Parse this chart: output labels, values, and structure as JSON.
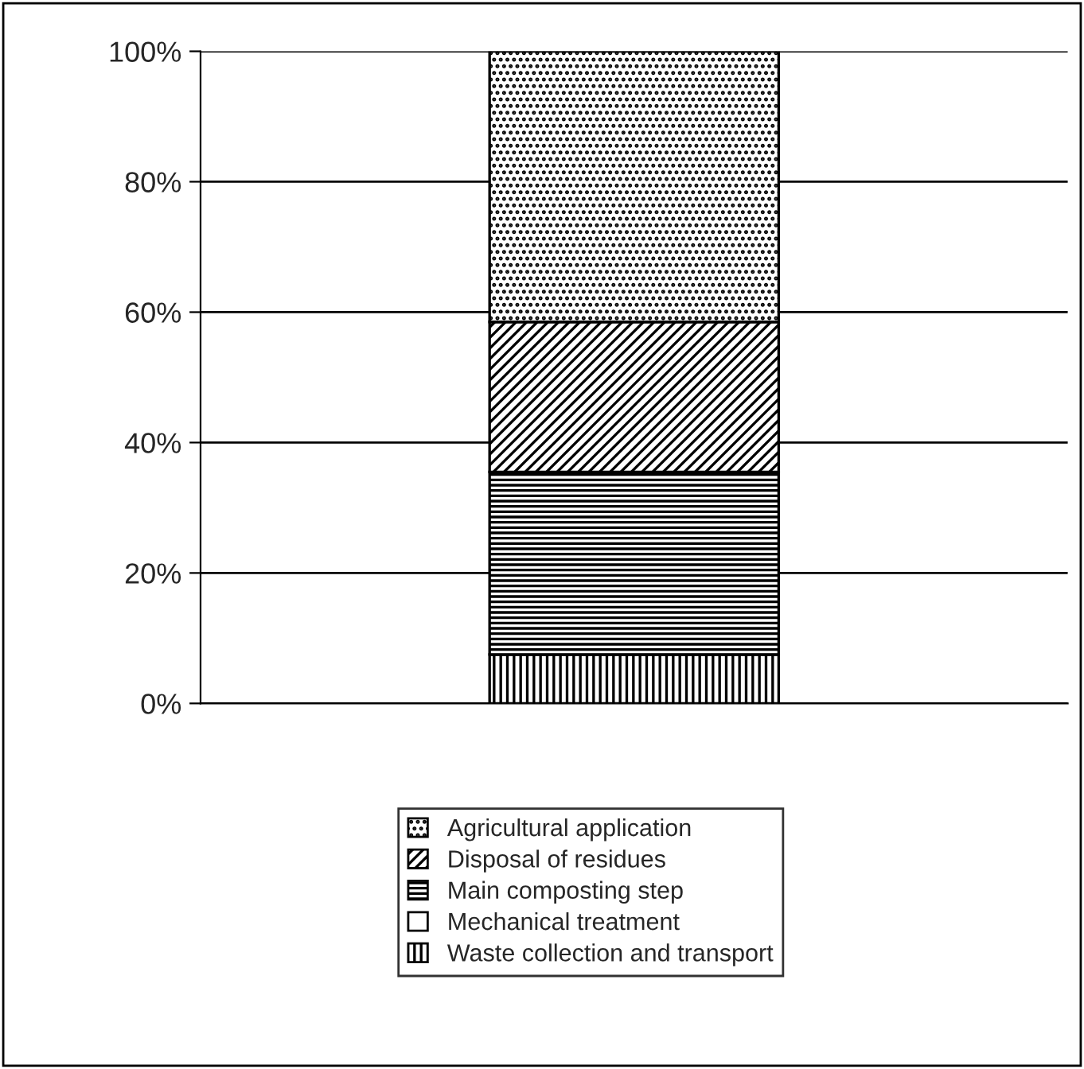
{
  "chart_data": {
    "type": "bar",
    "stacked": true,
    "categories": [
      null
    ],
    "series": [
      {
        "name": "Waste collection and transport",
        "color": "#000000",
        "values": [
          7.5
        ]
      },
      {
        "name": "Mechanical treatment",
        "color": "#ffffff",
        "values": [
          0
        ]
      },
      {
        "name": "Main composting step",
        "color": "#000000",
        "values": [
          28
        ]
      },
      {
        "name": "Disposal of residues",
        "color": "#000000",
        "values": [
          23
        ]
      },
      {
        "name": "Agricultural application",
        "color": "#000000",
        "values": [
          41.5
        ]
      }
    ],
    "ylim": [
      0,
      100
    ],
    "yticks": [
      {
        "value": 0,
        "label": "0%"
      },
      {
        "value": 20,
        "label": "20%"
      },
      {
        "value": 40,
        "label": "40%"
      },
      {
        "value": 60,
        "label": "60%"
      },
      {
        "value": 80,
        "label": "80%"
      },
      {
        "value": 100,
        "label": "100%"
      }
    ],
    "grid": "y",
    "legend": "bottom"
  }
}
